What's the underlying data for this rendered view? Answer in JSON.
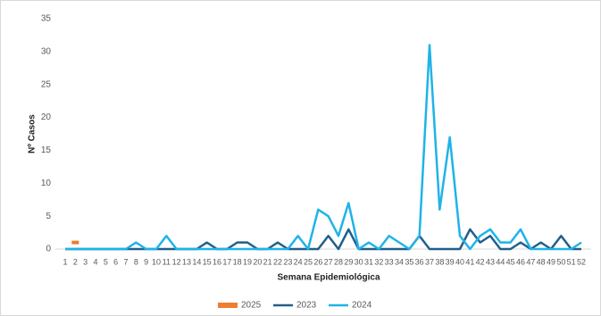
{
  "chart_data": {
    "type": "line",
    "x_label": "Semana Epidemiológica",
    "y_label": "Nº Casos",
    "categories": [
      "1",
      "2",
      "3",
      "4",
      "5",
      "6",
      "7",
      "8",
      "9",
      "10",
      "11",
      "12",
      "13",
      "14",
      "15",
      "16",
      "17",
      "18",
      "19",
      "20",
      "21",
      "22",
      "23",
      "24",
      "25",
      "26",
      "27",
      "28",
      "29",
      "30",
      "31",
      "32",
      "33",
      "34",
      "35",
      "36",
      "37",
      "38",
      "39",
      "40",
      "41",
      "42",
      "43",
      "44",
      "45",
      "46",
      "47",
      "48",
      "49",
      "50",
      "51",
      "52"
    ],
    "ylim": [
      0,
      35
    ],
    "yticks": [
      0,
      5,
      10,
      15,
      20,
      25,
      30,
      35
    ],
    "grid": false,
    "legend": "bottom",
    "series": [
      {
        "name": "2025",
        "color": "#ed7d31",
        "values": [
          null,
          1,
          null,
          null,
          null,
          null,
          null,
          null,
          null,
          null,
          null,
          null,
          null,
          null,
          null,
          null,
          null,
          null,
          null,
          null,
          null,
          null,
          null,
          null,
          null,
          null,
          null,
          null,
          null,
          null,
          null,
          null,
          null,
          null,
          null,
          null,
          null,
          null,
          null,
          null,
          null,
          null,
          null,
          null,
          null,
          null,
          null,
          null,
          null,
          null,
          null,
          null
        ]
      },
      {
        "name": "2023",
        "color": "#215f8a",
        "values": [
          0,
          0,
          0,
          0,
          0,
          0,
          0,
          0,
          0,
          0,
          0,
          0,
          0,
          0,
          1,
          0,
          0,
          1,
          1,
          0,
          0,
          1,
          0,
          0,
          0,
          0,
          2,
          0,
          3,
          0,
          0,
          0,
          0,
          0,
          0,
          2,
          0,
          0,
          0,
          0,
          3,
          1,
          2,
          0,
          0,
          1,
          0,
          1,
          0,
          2,
          0,
          0
        ]
      },
      {
        "name": "2024",
        "color": "#1fb3e8",
        "values": [
          0,
          0,
          0,
          0,
          0,
          0,
          0,
          1,
          0,
          0,
          2,
          0,
          0,
          0,
          0,
          0,
          0,
          0,
          0,
          0,
          0,
          0,
          0,
          2,
          0,
          6,
          5,
          2,
          7,
          0,
          1,
          0,
          2,
          1,
          0,
          2,
          31,
          6,
          17,
          2,
          0,
          2,
          3,
          1,
          1,
          3,
          0,
          0,
          0,
          0,
          0,
          1
        ]
      }
    ]
  }
}
